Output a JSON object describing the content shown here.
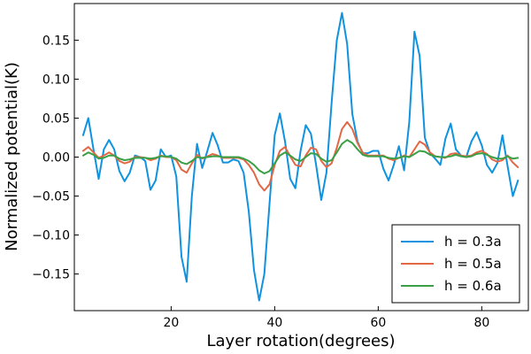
{
  "chart_data": {
    "type": "line",
    "xlabel": "Layer rotation(degrees)",
    "ylabel": "Normalized potential(K)",
    "xlim": [
      1.3,
      89
    ],
    "ylim": [
      -0.197,
      0.197
    ],
    "xticks": [
      20,
      40,
      60,
      80
    ],
    "yticks": [
      -0.15,
      -0.1,
      -0.05,
      0.0,
      0.05,
      0.1,
      0.15
    ],
    "xtick_labels": [
      "20",
      "40",
      "60",
      "80"
    ],
    "ytick_labels": [
      "−0.15",
      "−0.10",
      "−0.05",
      "0.00",
      "0.05",
      "0.10",
      "0.15"
    ],
    "grid": false,
    "legend_position": "bottom-right",
    "x": [
      3,
      4,
      5,
      6,
      7,
      8,
      9,
      10,
      11,
      12,
      13,
      14,
      15,
      16,
      17,
      18,
      19,
      20,
      21,
      22,
      23,
      24,
      25,
      26,
      27,
      28,
      29,
      30,
      31,
      32,
      33,
      34,
      35,
      36,
      37,
      38,
      39,
      40,
      41,
      42,
      43,
      44,
      45,
      46,
      47,
      48,
      49,
      50,
      51,
      52,
      53,
      54,
      55,
      56,
      57,
      58,
      59,
      60,
      61,
      62,
      63,
      64,
      65,
      66,
      67,
      68,
      69,
      70,
      71,
      72,
      73,
      74,
      75,
      76,
      77,
      78,
      79,
      80,
      81,
      82,
      83,
      84,
      85,
      86,
      87
    ],
    "series": [
      {
        "name": "h = 0.3a",
        "color": "#0f93e0",
        "values": [
          0.028,
          0.05,
          0.01,
          -0.028,
          0.01,
          0.022,
          0.01,
          -0.018,
          -0.031,
          -0.02,
          0.002,
          0.0,
          -0.005,
          -0.042,
          -0.03,
          0.01,
          0.0,
          0.002,
          -0.025,
          -0.128,
          -0.16,
          -0.05,
          0.017,
          -0.014,
          0.008,
          0.031,
          0.015,
          -0.007,
          -0.007,
          -0.003,
          -0.005,
          -0.02,
          -0.07,
          -0.145,
          -0.184,
          -0.15,
          -0.06,
          0.028,
          0.056,
          0.02,
          -0.028,
          -0.04,
          0.008,
          0.041,
          0.03,
          -0.01,
          -0.055,
          -0.02,
          0.07,
          0.15,
          0.185,
          0.145,
          0.055,
          0.02,
          0.005,
          0.005,
          0.008,
          0.008,
          -0.015,
          -0.03,
          -0.01,
          0.014,
          -0.017,
          0.045,
          0.161,
          0.13,
          0.025,
          0.005,
          -0.002,
          -0.01,
          0.024,
          0.043,
          0.01,
          0.002,
          0.0,
          0.02,
          0.032,
          0.015,
          -0.01,
          -0.02,
          -0.008,
          0.028,
          -0.012,
          -0.05,
          -0.03
        ]
      },
      {
        "name": "h = 0.5a",
        "color": "#e26845",
        "values": [
          0.008,
          0.013,
          0.006,
          -0.001,
          0.002,
          0.006,
          0.002,
          -0.005,
          -0.008,
          -0.006,
          0.0,
          0.0,
          -0.001,
          -0.004,
          -0.002,
          0.002,
          0.0,
          0.0,
          -0.004,
          -0.016,
          -0.02,
          -0.008,
          0.003,
          -0.002,
          0.001,
          0.004,
          0.002,
          -0.001,
          -0.001,
          -0.001,
          -0.001,
          -0.003,
          -0.01,
          -0.02,
          -0.035,
          -0.043,
          -0.035,
          -0.01,
          0.008,
          0.013,
          0.001,
          -0.01,
          -0.012,
          0.002,
          0.012,
          0.01,
          -0.005,
          -0.013,
          -0.008,
          0.012,
          0.036,
          0.045,
          0.036,
          0.018,
          0.006,
          0.002,
          0.002,
          0.002,
          0.002,
          -0.002,
          -0.004,
          -0.001,
          0.002,
          0.0,
          0.01,
          0.02,
          0.016,
          0.006,
          0.001,
          0.0,
          -0.001,
          0.004,
          0.005,
          0.002,
          0.001,
          0.002,
          0.006,
          0.008,
          0.004,
          -0.003,
          -0.006,
          -0.004,
          0.002,
          -0.007,
          -0.013
        ]
      },
      {
        "name": "h = 0.6a",
        "color": "#3aa046",
        "values": [
          0.002,
          0.006,
          0.003,
          -0.002,
          -0.001,
          0.002,
          0.002,
          -0.002,
          -0.004,
          -0.003,
          -0.001,
          -0.001,
          -0.001,
          -0.002,
          -0.001,
          0.001,
          0.001,
          0.0,
          -0.002,
          -0.007,
          -0.009,
          -0.005,
          0.0,
          -0.001,
          0.0,
          0.001,
          0.001,
          0.0,
          0.0,
          0.0,
          0.0,
          -0.002,
          -0.005,
          -0.01,
          -0.017,
          -0.021,
          -0.018,
          -0.008,
          0.002,
          0.006,
          0.002,
          -0.003,
          -0.005,
          0.0,
          0.005,
          0.004,
          -0.002,
          -0.006,
          -0.004,
          0.006,
          0.017,
          0.022,
          0.018,
          0.01,
          0.003,
          0.001,
          0.001,
          0.001,
          0.001,
          -0.001,
          -0.002,
          -0.001,
          0.001,
          0.0,
          0.004,
          0.008,
          0.007,
          0.003,
          0.001,
          0.0,
          0.0,
          0.001,
          0.003,
          0.001,
          0.0,
          0.001,
          0.004,
          0.005,
          0.003,
          0.0,
          -0.002,
          -0.002,
          0.001,
          -0.002,
          -0.001
        ]
      }
    ]
  }
}
